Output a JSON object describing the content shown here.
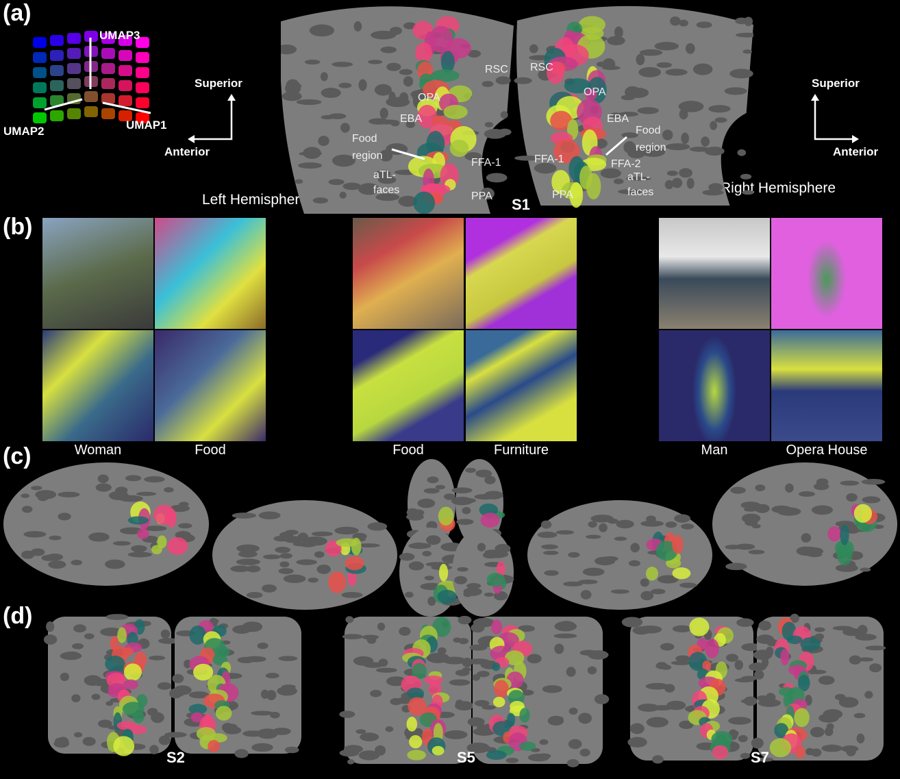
{
  "panels": {
    "a": "(a)",
    "b": "(b)",
    "c": "(c)",
    "d": "(d)"
  },
  "panel_a": {
    "umap_axes": [
      "UMAP1",
      "UMAP2",
      "UMAP3"
    ],
    "left_orientation": {
      "up": "Superior",
      "side": "Anterior"
    },
    "right_orientation": {
      "up": "Superior",
      "side": "Anterior"
    },
    "left_hemisphere": "Left Hemisphere",
    "right_hemisphere": "Right Hemisphere",
    "subject": "S1",
    "left_rois": [
      "RSC",
      "OPA",
      "EBA",
      "Food region",
      "FFA-1",
      "aTL-faces",
      "PPA"
    ],
    "right_rois": [
      "RSC",
      "OPA",
      "EBA",
      "Food region",
      "FFA-1",
      "FFA-2",
      "aTL-faces",
      "PPA"
    ]
  },
  "panel_b": {
    "groups": [
      {
        "captions": [
          "Woman",
          "Food"
        ]
      },
      {
        "captions": [
          "Food",
          "Furniture"
        ]
      },
      {
        "captions": [
          "Man",
          "Opera House"
        ]
      }
    ]
  },
  "panel_d": {
    "subjects": [
      "S2",
      "S5",
      "S7"
    ]
  },
  "colors": {
    "cortex": "#7d7d7d",
    "sulci": "#5a5a5a",
    "background": "#000000",
    "highlight_pink": "#f0457a",
    "highlight_yellow": "#d8ef3c",
    "highlight_green": "#2f8a5a"
  }
}
